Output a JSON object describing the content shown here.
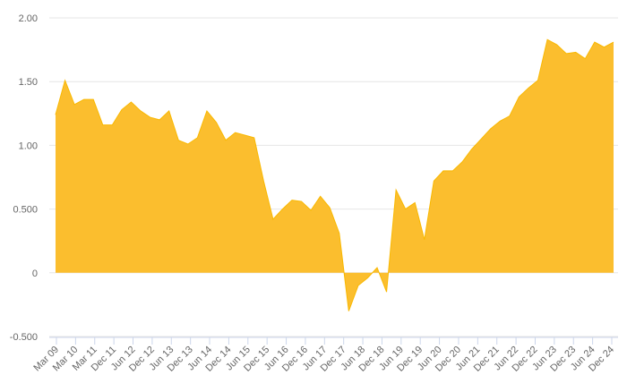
{
  "chart_data": {
    "type": "area",
    "title": "",
    "xlabel": "",
    "ylabel": "",
    "ylim": [
      -0.5,
      2.0
    ],
    "y_ticks": [
      {
        "value": 2.0,
        "label": "2.00"
      },
      {
        "value": 1.5,
        "label": "1.50"
      },
      {
        "value": 1.0,
        "label": "1.00"
      },
      {
        "value": 0.5,
        "label": "0.500"
      },
      {
        "value": 0.0,
        "label": "0"
      },
      {
        "value": -0.5,
        "label": "-0.500"
      }
    ],
    "x_tick_labels": [
      "Mar 09",
      "Mar 10",
      "Mar 11",
      "Dec 11",
      "Jun 12",
      "Dec 12",
      "Jun 13",
      "Dec 13",
      "Jun 14",
      "Dec 14",
      "Jun 15",
      "Dec 15",
      "Jun 16",
      "Dec 16",
      "Jun 17",
      "Dec 17",
      "Jun 18",
      "Dec 18",
      "Jun 19",
      "Dec 19",
      "Jun 20",
      "Dec 20",
      "Jun 21",
      "Dec 21",
      "Jun 22",
      "Dec 22",
      "Jun 23",
      "Dec 23",
      "Jun 24",
      "Dec 24"
    ],
    "grid": true,
    "color": "#f9b800",
    "fill_color": "#fbbe2e",
    "series": [
      {
        "values": [
          1.24,
          1.51,
          1.32,
          1.36,
          1.36,
          1.16,
          1.16,
          1.28,
          1.34,
          1.27,
          1.22,
          1.2,
          1.27,
          1.04,
          1.01,
          1.06,
          1.27,
          1.18,
          1.04,
          1.1,
          1.08,
          1.06,
          0.72,
          0.42,
          0.5,
          0.57,
          0.56,
          0.49,
          0.6,
          0.51,
          0.31,
          -0.3,
          -0.1,
          -0.04,
          0.04,
          -0.15,
          0.65,
          0.5,
          0.55,
          0.26,
          0.72,
          0.8,
          0.8,
          0.87,
          0.97,
          1.05,
          1.13,
          1.19,
          1.23,
          1.38,
          1.45,
          1.51,
          1.83,
          1.79,
          1.72,
          1.73,
          1.68,
          1.81,
          1.77,
          1.81
        ]
      }
    ]
  }
}
